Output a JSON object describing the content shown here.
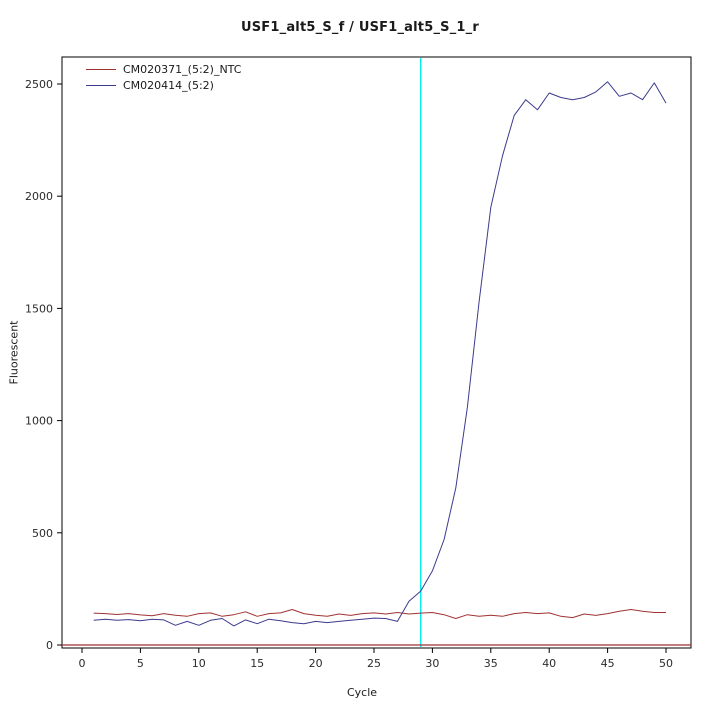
{
  "chart_data": {
    "type": "line",
    "title": "USF1_alt5_S_f / USF1_alt5_S_1_r",
    "xlabel": "Cycle",
    "ylabel": "Fluorescent",
    "xlim": [
      0,
      50
    ],
    "ylim": [
      0,
      2620
    ],
    "x_ticks": [
      0,
      5,
      10,
      15,
      20,
      25,
      30,
      35,
      40,
      45,
      50
    ],
    "y_ticks": [
      0,
      500,
      1000,
      1500,
      2000,
      2500
    ],
    "grid": false,
    "legend_position": "top-left",
    "vertical_line_x": 29,
    "vertical_line_color": "#00eeee",
    "baseline_y": 0,
    "x": [
      1,
      2,
      3,
      4,
      5,
      6,
      7,
      8,
      9,
      10,
      11,
      12,
      13,
      14,
      15,
      16,
      17,
      18,
      19,
      20,
      21,
      22,
      23,
      24,
      25,
      26,
      27,
      28,
      29,
      30,
      31,
      32,
      33,
      34,
      35,
      36,
      37,
      38,
      39,
      40,
      41,
      42,
      43,
      44,
      45,
      46,
      47,
      48,
      49,
      50
    ],
    "series": [
      {
        "name": "CM020371_(5:2)_NTC",
        "color": "#a03232",
        "values": [
          142,
          140,
          136,
          140,
          134,
          130,
          140,
          133,
          128,
          140,
          143,
          128,
          135,
          148,
          128,
          140,
          143,
          158,
          140,
          133,
          128,
          138,
          132,
          140,
          143,
          138,
          145,
          138,
          142,
          145,
          135,
          118,
          135,
          128,
          133,
          128,
          140,
          145,
          140,
          143,
          128,
          122,
          138,
          132,
          140,
          150,
          158,
          150,
          145,
          145
        ]
      },
      {
        "name": "CM020414_(5:2)",
        "color": "#3b3b8e",
        "values": [
          110,
          115,
          110,
          113,
          108,
          115,
          112,
          88,
          105,
          88,
          110,
          118,
          85,
          112,
          95,
          115,
          108,
          100,
          95,
          105,
          100,
          105,
          110,
          115,
          120,
          118,
          105,
          195,
          240,
          330,
          470,
          700,
          1060,
          1530,
          1950,
          2180,
          2360,
          2430,
          2385,
          2460,
          2440,
          2430,
          2440,
          2465,
          2510,
          2445,
          2460,
          2430,
          2505,
          2415
        ]
      }
    ]
  }
}
